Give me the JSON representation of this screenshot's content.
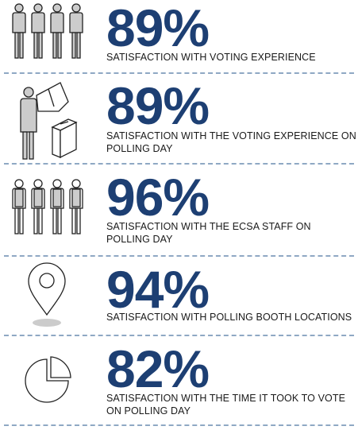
{
  "stats": [
    {
      "percent": "89%",
      "caption": "SATISFACTION WITH VOTING EXPERIENCE",
      "icon": "four-people-icon"
    },
    {
      "percent": "89%",
      "caption": "SATISFACTION WITH THE VOTING EXPERIENCE ON POLLING DAY",
      "icon": "voter-at-booth-icon"
    },
    {
      "percent": "96%",
      "caption": "SATISFACTION WITH THE ECSA STAFF ON POLLING DAY",
      "icon": "staff-group-icon"
    },
    {
      "percent": "94%",
      "caption": "SATISFACTION WITH POLLING BOOTH LOCATIONS",
      "icon": "location-pin-icon"
    },
    {
      "percent": "82%",
      "caption": "SATISFACTION WITH THE TIME IT TOOK TO VOTE ON POLLING DAY",
      "icon": "pie-clock-icon"
    }
  ],
  "colors": {
    "accent": "#1d3f73",
    "divider": "#8fa8c4",
    "icon_fill": "#cccccc",
    "icon_stroke": "#222222"
  }
}
